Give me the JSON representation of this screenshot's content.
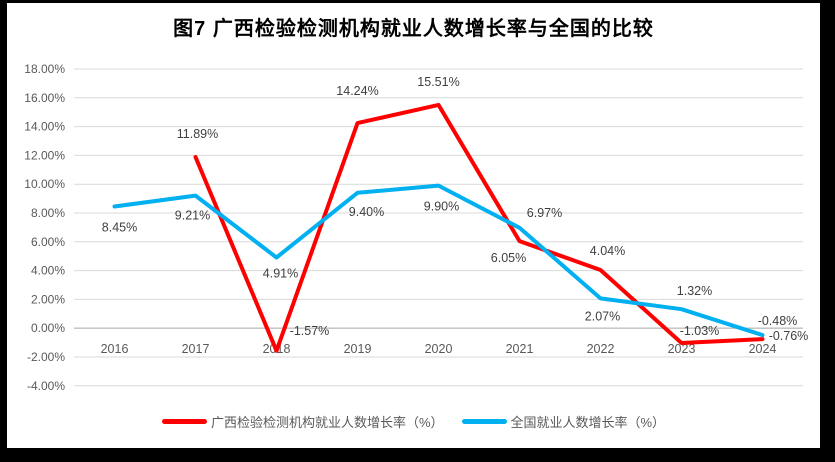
{
  "title": "图7 广西检验检测机构就业人数增长率与全国的比较",
  "chart_data": {
    "type": "line",
    "title": "图7 广西检验检测机构就业人数增长率与全国的比较",
    "categories": [
      "2016",
      "2017",
      "2018",
      "2019",
      "2020",
      "2021",
      "2022",
      "2023",
      "2024"
    ],
    "series": [
      {
        "name": "广西检验检测机构就业人数增长率（%）",
        "color": "#FF0000",
        "values": [
          null,
          11.89,
          -1.57,
          14.24,
          15.51,
          6.05,
          4.04,
          -1.03,
          -0.76
        ],
        "labels": [
          "",
          "11.89%",
          "-1.57%",
          "14.24%",
          "15.51%",
          "6.05%",
          "4.04%",
          "-1.03%",
          "-0.76%"
        ],
        "label_dx": [
          0,
          2,
          33,
          0,
          0,
          -11,
          7,
          18,
          26
        ],
        "label_dy": [
          0,
          -23,
          -20,
          -32,
          -23,
          17,
          -19,
          -12,
          -3
        ]
      },
      {
        "name": "全国就业人数增长率（%）",
        "color": "#00B0F0",
        "values": [
          8.45,
          9.21,
          4.91,
          9.4,
          9.9,
          6.97,
          2.07,
          1.32,
          -0.48
        ],
        "labels": [
          "8.45%",
          "9.21%",
          "4.91%",
          "9.40%",
          "9.90%",
          "6.97%",
          "2.07%",
          "1.32%",
          "-0.48%"
        ],
        "label_dx": [
          5,
          -3,
          4,
          9,
          3,
          25,
          2,
          13,
          15
        ],
        "label_dy": [
          21,
          20,
          16,
          19,
          21,
          -15,
          18,
          -18,
          -14
        ]
      }
    ],
    "ylim": [
      -4,
      18
    ],
    "ytick_step": 2,
    "ytick_labels": [
      "18.00%",
      "16.00%",
      "14.00%",
      "12.00%",
      "10.00%",
      "8.00%",
      "6.00%",
      "4.00%",
      "2.00%",
      "0.00%",
      "-2.00%",
      "-4.00%"
    ],
    "grid": true,
    "legend_position": "bottom",
    "colors": {
      "grid_line": "#D9D9D9",
      "zero_line": "#BFBFBF",
      "axis_text": "#595959",
      "data_label_text": "#3F3F3F",
      "title_text": "#000000",
      "frame_border": "#000000",
      "background": "#FFFFFF"
    }
  }
}
